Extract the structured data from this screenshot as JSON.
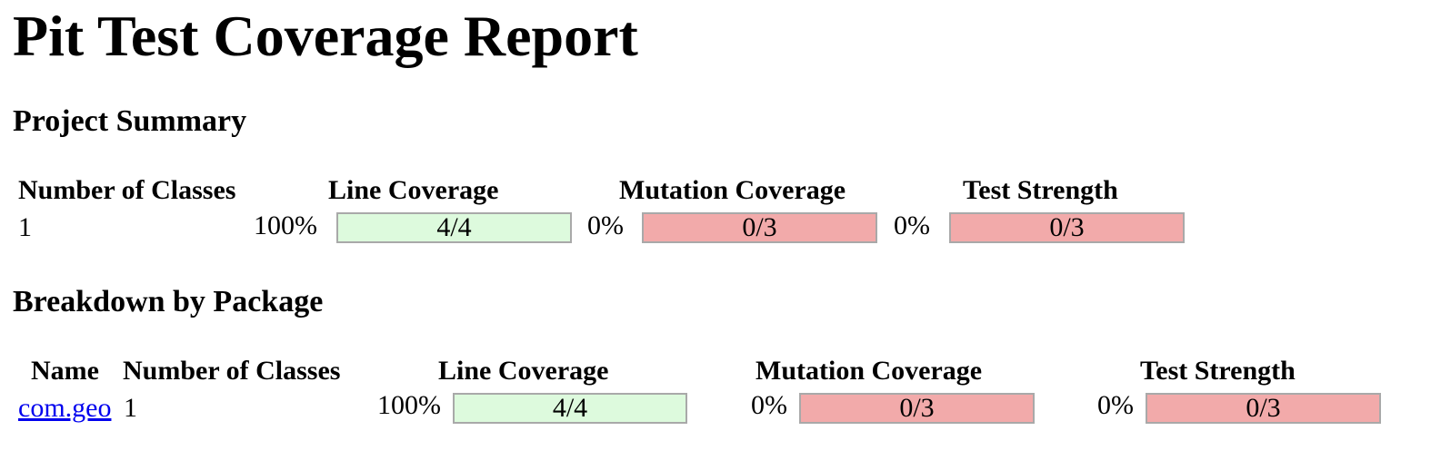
{
  "title": "Pit Test Coverage Report",
  "project_summary": {
    "heading": "Project Summary",
    "headers": {
      "classes": "Number of Classes",
      "line": "Line Coverage",
      "mutation": "Mutation Coverage",
      "strength": "Test Strength"
    },
    "classes": "1",
    "line": {
      "percent": "100%",
      "ratio": "4/4",
      "fraction": 1.0,
      "color": "#ddfadd"
    },
    "mutation": {
      "percent": "0%",
      "ratio": "0/3",
      "fraction": 0.0,
      "color": "#f2aaaa"
    },
    "strength": {
      "percent": "0%",
      "ratio": "0/3",
      "fraction": 0.0,
      "color": "#f2aaaa"
    }
  },
  "breakdown": {
    "heading": "Breakdown by Package",
    "headers": {
      "name": "Name",
      "classes": "Number of Classes",
      "line": "Line Coverage",
      "mutation": "Mutation Coverage",
      "strength": "Test Strength"
    },
    "rows": [
      {
        "name": "com.geo",
        "classes": "1",
        "line": {
          "percent": "100%",
          "ratio": "4/4",
          "fraction": 1.0
        },
        "mutation": {
          "percent": "0%",
          "ratio": "0/3",
          "fraction": 0.0
        },
        "strength": {
          "percent": "0%",
          "ratio": "0/3",
          "fraction": 0.0
        }
      }
    ]
  }
}
